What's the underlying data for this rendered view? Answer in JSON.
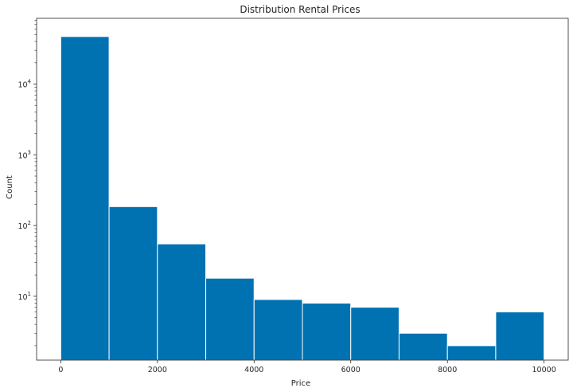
{
  "chart_data": {
    "type": "bar",
    "title": "Distribution Rental Prices",
    "xlabel": "Price",
    "ylabel": "Count",
    "yscale": "log",
    "bar_color": "#0072b2",
    "edge_color": "#ffffff",
    "bin_edges": [
      0,
      1000,
      2000,
      3000,
      4000,
      5000,
      6000,
      7000,
      8000,
      9000,
      10000
    ],
    "values": [
      47000,
      185,
      55,
      18,
      9,
      8,
      7,
      3,
      2,
      6
    ],
    "xlim": [
      -500,
      10500
    ],
    "ylim": [
      1.25,
      85000
    ],
    "x_ticks": [
      {
        "value": 0,
        "label": "0"
      },
      {
        "value": 2000,
        "label": "2000"
      },
      {
        "value": 4000,
        "label": "4000"
      },
      {
        "value": 6000,
        "label": "6000"
      },
      {
        "value": 8000,
        "label": "8000"
      },
      {
        "value": 10000,
        "label": "10000"
      }
    ],
    "y_ticks": [
      {
        "value": 10,
        "base": "10",
        "exp": "1"
      },
      {
        "value": 100,
        "base": "10",
        "exp": "2"
      },
      {
        "value": 1000,
        "base": "10",
        "exp": "3"
      },
      {
        "value": 10000,
        "base": "10",
        "exp": "4"
      }
    ],
    "grid": false,
    "legend": "none"
  }
}
